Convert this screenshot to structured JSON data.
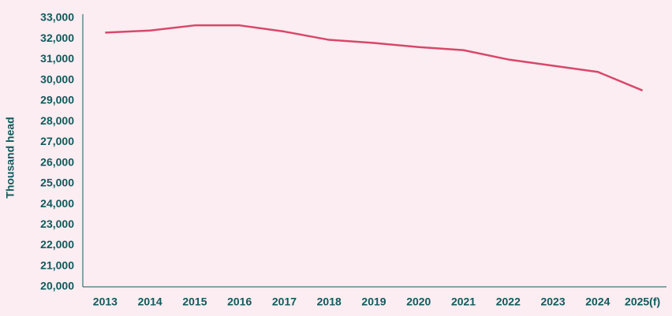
{
  "chart_data": {
    "type": "line",
    "y_label": "Thousand head",
    "categories": [
      "2013",
      "2014",
      "2015",
      "2016",
      "2017",
      "2018",
      "2019",
      "2020",
      "2021",
      "2022",
      "2023",
      "2024",
      "2025(f)"
    ],
    "series": [
      {
        "name": "Thousand head",
        "color": "#d9476a",
        "values": [
          32300,
          32400,
          32650,
          32650,
          32350,
          31950,
          31800,
          31600,
          31450,
          31000,
          30700,
          30400,
          29500
        ]
      }
    ],
    "ylim": [
      20000,
      33000
    ],
    "yticks": [
      {
        "value": 20000,
        "label": "20,000"
      },
      {
        "value": 21000,
        "label": "21,000"
      },
      {
        "value": 22000,
        "label": "22,000"
      },
      {
        "value": 23000,
        "label": "23,000"
      },
      {
        "value": 24000,
        "label": "24,000"
      },
      {
        "value": 25000,
        "label": "25,000"
      },
      {
        "value": 26000,
        "label": "26,000"
      },
      {
        "value": 27000,
        "label": "27,000"
      },
      {
        "value": 28000,
        "label": "28,000"
      },
      {
        "value": 29000,
        "label": "29,000"
      },
      {
        "value": 30000,
        "label": "30,000"
      },
      {
        "value": 31000,
        "label": "31,000"
      },
      {
        "value": 32000,
        "label": "32,000"
      },
      {
        "value": 33000,
        "label": "33,000"
      }
    ],
    "grid": false
  }
}
